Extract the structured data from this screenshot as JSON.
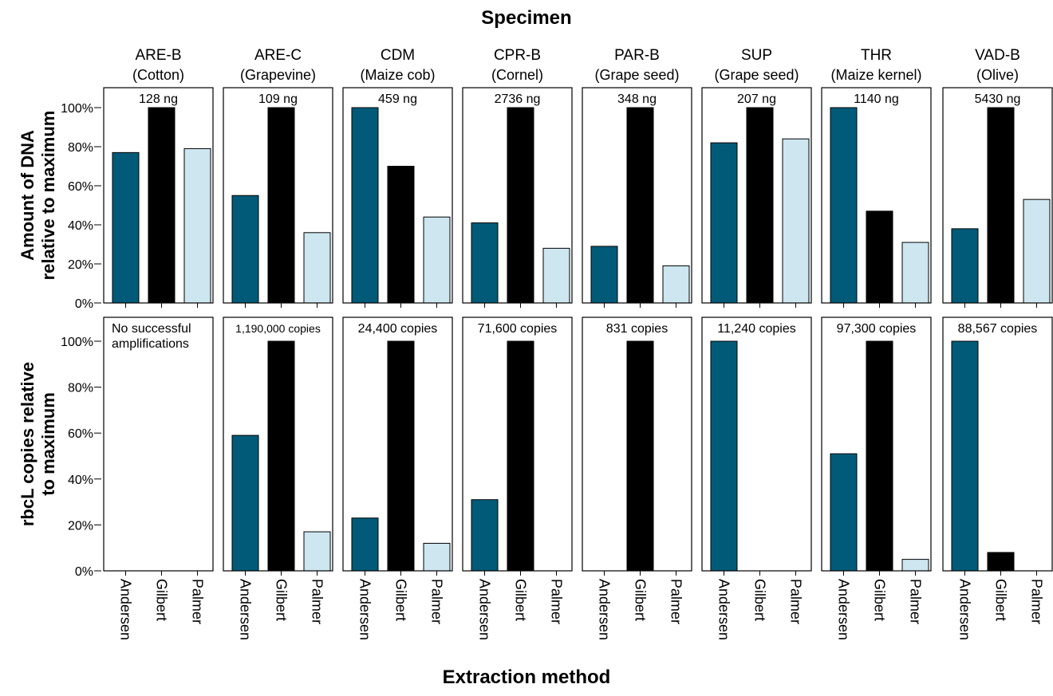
{
  "chart_data": {
    "type": "bar",
    "title": "Specimen",
    "xlabel": "Extraction method",
    "methods": [
      "Andersen",
      "Gilbert",
      "Palmer"
    ],
    "colors": {
      "Andersen": "#015b78",
      "Gilbert": "#000000",
      "Palmer": "#cde6f0"
    },
    "ylim": [
      0,
      100
    ],
    "y_ticks": [
      "0%",
      "20%",
      "40%",
      "60%",
      "80%",
      "100%"
    ],
    "grid": false,
    "legend": "none",
    "specimens": [
      {
        "name": "ARE-B",
        "material": "(Cotton)"
      },
      {
        "name": "ARE-C",
        "material": "(Grapevine)"
      },
      {
        "name": "CDM",
        "material": "(Maize cob)"
      },
      {
        "name": "CPR-B",
        "material": "(Cornel)"
      },
      {
        "name": "PAR-B",
        "material": "(Grape seed)"
      },
      {
        "name": "SUP",
        "material": "(Grape seed)"
      },
      {
        "name": "THR",
        "material": "(Maize kernel)"
      },
      {
        "name": "VAD-B",
        "material": "(Olive)"
      }
    ],
    "rows": [
      {
        "ylabel_line1": "Amount of DNA",
        "ylabel_line2": "relative to maximum",
        "panels": [
          {
            "annotation": "128 ng",
            "values": [
              77,
              100,
              79
            ]
          },
          {
            "annotation": "109 ng",
            "values": [
              55,
              100,
              36
            ]
          },
          {
            "annotation": "459 ng",
            "values": [
              100,
              70,
              44
            ]
          },
          {
            "annotation": "2736 ng",
            "values": [
              41,
              100,
              28
            ]
          },
          {
            "annotation": "348 ng",
            "values": [
              29,
              100,
              19
            ]
          },
          {
            "annotation": "207 ng",
            "values": [
              82,
              100,
              84
            ]
          },
          {
            "annotation": "1140 ng",
            "values": [
              100,
              47,
              31
            ]
          },
          {
            "annotation": "5430 ng",
            "values": [
              38,
              100,
              53
            ]
          }
        ]
      },
      {
        "ylabel_line1": "rbcL copies relative",
        "ylabel_line2": "to maximum",
        "panels": [
          {
            "annotation": "No successful",
            "annotation2": "amplifications",
            "values": [
              0,
              0,
              0
            ]
          },
          {
            "annotation": "1,190,000 copies",
            "values": [
              59,
              100,
              17
            ]
          },
          {
            "annotation": "24,400 copies",
            "values": [
              23,
              100,
              12
            ]
          },
          {
            "annotation": "71,600 copies",
            "values": [
              31,
              100,
              0
            ]
          },
          {
            "annotation": "831 copies",
            "values": [
              0,
              100,
              0
            ]
          },
          {
            "annotation": "11,240 copies",
            "values": [
              100,
              0,
              0
            ]
          },
          {
            "annotation": "97,300 copies",
            "values": [
              51,
              100,
              5
            ]
          },
          {
            "annotation": "88,567 copies",
            "values": [
              100,
              8,
              0
            ]
          }
        ]
      }
    ]
  }
}
